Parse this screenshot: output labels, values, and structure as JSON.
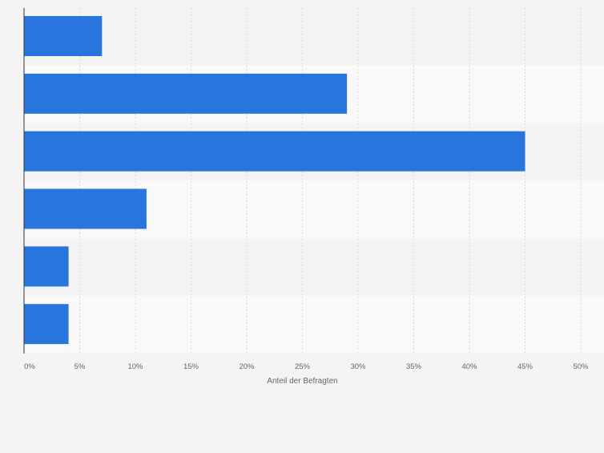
{
  "chart_data": {
    "type": "bar",
    "orientation": "horizontal",
    "categories": [
      "",
      "",
      "",
      "",
      "",
      ""
    ],
    "values": [
      7,
      29,
      45,
      11,
      4,
      4
    ],
    "title": "",
    "xlabel": "Anteil der Befragten",
    "ylabel": "",
    "xlim": [
      0,
      50
    ],
    "xticks": [
      0,
      5,
      10,
      15,
      20,
      25,
      30,
      35,
      40,
      45,
      50
    ],
    "tick_labels": [
      "0%",
      "5%",
      "10%",
      "15%",
      "20%",
      "25%",
      "30%",
      "35%",
      "40%",
      "45%",
      "50%"
    ],
    "grid": true,
    "legend": "none",
    "colors": {
      "bar": "#2876dd",
      "background": "#f4f4f4",
      "band_light": "#f9f9f9",
      "band_dark": "#f4f4f4",
      "grid": "#dcdcdc",
      "axis": "#333333",
      "text": "#666666"
    }
  }
}
